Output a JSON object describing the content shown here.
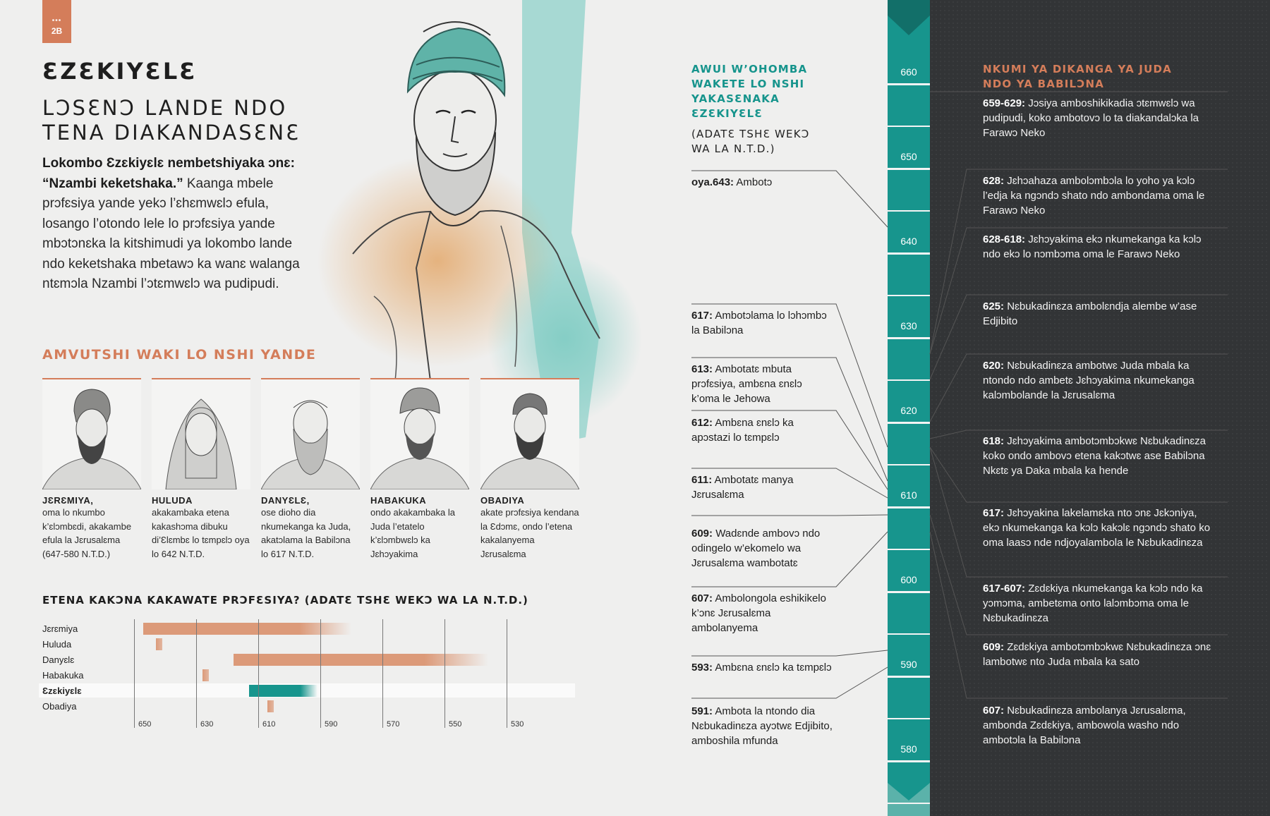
{
  "page": {
    "badge_dots": "•••",
    "badge_number": "2B",
    "title": "ƐZƐKIYƐLƐ",
    "subtitle": "LƆSƐNƆ LANDE NDO TENA DIAKANDASƐNƐ",
    "intro_bold": "Lokombo Ɛzɛkiyɛlɛ nembetshiyaka ɔnɛ: “Nzambi keketshaka.”",
    "intro_text": " Kaanga mbele prɔfɛsiya yande yekɔ l’ɛhɛmwɛlɔ efula, losango l’otondo lele lo prɔfɛsiya yande mbɔtɔnɛka la kitshimudi ya lokombo lande ndo keketshaka mbetawɔ ka wanɛ walanga ntɛmɔla Nzambi l’ɔtɛmwɛlɔ wa pudipudi."
  },
  "contemporaries": {
    "heading": "AMVUTSHI WAKI LO NSHI YANDE",
    "items": [
      {
        "name": "JƐRƐMIYA,",
        "desc": "oma lo nkumbo k’ɛlɔmbɛdi, akakambe efula la Jɛrusalɛma (647-580 N.T.D.)"
      },
      {
        "name": "HULUDA",
        "desc": "akakambaka etena kakashɔma dibuku di’Ɛlɛmbɛ lo tɛmpɛlɔ oya lo 642 N.T.D."
      },
      {
        "name": "DANYƐLƐ,",
        "desc": "ose dioho dia nkumekanga ka Juda, akatɔlama la Babilɔna lo 617 N.T.D."
      },
      {
        "name": "HABAKUKA",
        "desc": "ondo akakambaka la Juda l’etatelo k’ɛlɔmbwɛlɔ ka Jɛhɔyakima"
      },
      {
        "name": "OBADIYA",
        "desc": "akate prɔfɛsiya kendana la Ɛdɔmɛ, ondo l’etena kakalanyema Jɛrusalɛma"
      }
    ]
  },
  "gantt": {
    "heading_bold": "ETENA KAKƆNA KAKAWATE PRƆFƐSIYA?",
    "heading_note": " (ADATƐ TSHƐ WEKƆ WA LA N.T.D.)",
    "ticks": [
      "650",
      "630",
      "610",
      "590",
      "570",
      "550",
      "530"
    ],
    "rows": [
      {
        "label": "Jɛrɛmiya",
        "start": 647,
        "end": 580,
        "highlight": false
      },
      {
        "label": "Huluda",
        "start": 643,
        "end": 641,
        "highlight": false
      },
      {
        "label": "Danyɛlɛ",
        "start": 618,
        "end": 536,
        "highlight": false
      },
      {
        "label": "Habakuka",
        "start": 628,
        "end": 626,
        "highlight": false
      },
      {
        "label": "Ɛzɛkiyɛlɛ",
        "start": 613,
        "end": 591,
        "highlight": true
      },
      {
        "label": "Obadiya",
        "start": 607,
        "end": 605,
        "highlight": false
      }
    ],
    "colors": {
      "bar": "#dc9a79",
      "highlight": "#17958d"
    }
  },
  "ezekiel_events": {
    "heading": "AWUI W’OHOMBA WAKETE LO NSHI YAKASƐNAKA ƐZƐKIYƐLƐ",
    "note": "(ADATƐ TSHƐ WEKƆ WA LA N.T.D.)",
    "items": [
      {
        "year": "oya.643:",
        "text": " Ambotɔ"
      },
      {
        "year": "617:",
        "text": " Ambotɔlama lo lɔhɔmbɔ la Babilɔna"
      },
      {
        "year": "613:",
        "text": " Ambotatɛ mbuta prɔfɛsiya, ambɛna ɛnɛlɔ k’oma le Jehowa"
      },
      {
        "year": "612:",
        "text": " Ambɛna ɛnɛlɔ ka apɔstazi lo tɛmpɛlɔ"
      },
      {
        "year": "611:",
        "text": " Ambotatɛ manya Jɛrusalɛma"
      },
      {
        "year": "609:",
        "text": " Wadɛnde ambovɔ ndo odingelo w’ekomelo wa Jɛrusalɛma wambotatɛ"
      },
      {
        "year": "607:",
        "text": " Ambolongola eshikikelo k’ɔnɛ Jɛrusalɛma ambolanyema"
      },
      {
        "year": "593:",
        "text": " Ambɛna ɛnɛlɔ ka tɛmpɛlɔ"
      },
      {
        "year": "591:",
        "text": " Ambota la ntondo dia Nɛbukadinɛza ayɔtwɛ Edjibito, amboshila mfunda"
      }
    ]
  },
  "timeline": {
    "labels": [
      "660",
      "650",
      "640",
      "630",
      "620",
      "610",
      "600",
      "590",
      "580"
    ],
    "color": "#17958d"
  },
  "kings": {
    "heading": "NKUMI YA DIKANGA YA JUDA NDO YA BABILƆNA",
    "items": [
      {
        "year": "659-629:",
        "text": " Jɔsiya amboshikikadia ɔtɛmwɛlɔ wa pudipudi, koko ambotovɔ lo ta diakandalɔka la Farawɔ Neko"
      },
      {
        "year": "628:",
        "text": " Jɛhɔahaza ambolɔmbɔla lo yoho ya kɔlɔ l’edja ka ngɔndɔ shato ndo ambondama oma le Farawɔ Neko"
      },
      {
        "year": "628-618:",
        "text": " Jɛhɔyakima ekɔ nkumekanga ka kɔlɔ ndo ekɔ lo nɔmbɔma oma le Farawɔ Neko"
      },
      {
        "year": "625:",
        "text": " Nɛbukadinɛza ambolɛndja alembe w’ase Edjibito"
      },
      {
        "year": "620:",
        "text": " Nɛbukadinɛza ambotwɛ Juda mbala ka ntondo ndo ambetɛ Jɛhɔyakima nkumekanga kalɔmbolande la Jɛrusalɛma"
      },
      {
        "year": "618:",
        "text": " Jɛhɔyakima ambotɔmbɔkwɛ Nɛbukadinɛza koko ondo ambovɔ etena kakɔtwɛ ase Babilɔna Nkɛtɛ ya Daka mbala ka hende"
      },
      {
        "year": "617:",
        "text": " Jɛhɔyakina lakelamɛka nto ɔnɛ Jɛkɔniya, ekɔ nkumekanga ka kɔlɔ kakɔlɛ ngɔndɔ shato ko oma laasɔ nde ndjoyalambola le Nɛbukadinɛza"
      },
      {
        "year": "617-607:",
        "text": " Zɛdɛkiya nkumekanga ka kɔlɔ ndo ka yɔmɔma, ambetɛma onto lalɔmbɔma oma le Nɛbukadinɛza"
      },
      {
        "year": "609:",
        "text": " Zɛdɛkiya ambotɔmbɔkwɛ Nɛbukadinɛza ɔnɛ lambotwɛ nto Juda mbala ka sato"
      },
      {
        "year": "607:",
        "text": " Nɛbukadinɛza ambolanya Jɛrusalɛma, ambonda Zɛdɛkiya, ambowola washo ndo ambotɔla la Babilɔna"
      }
    ]
  },
  "colors": {
    "accent_orange": "#d47d5a",
    "accent_teal": "#17958d",
    "dark_panel": "#323436"
  }
}
